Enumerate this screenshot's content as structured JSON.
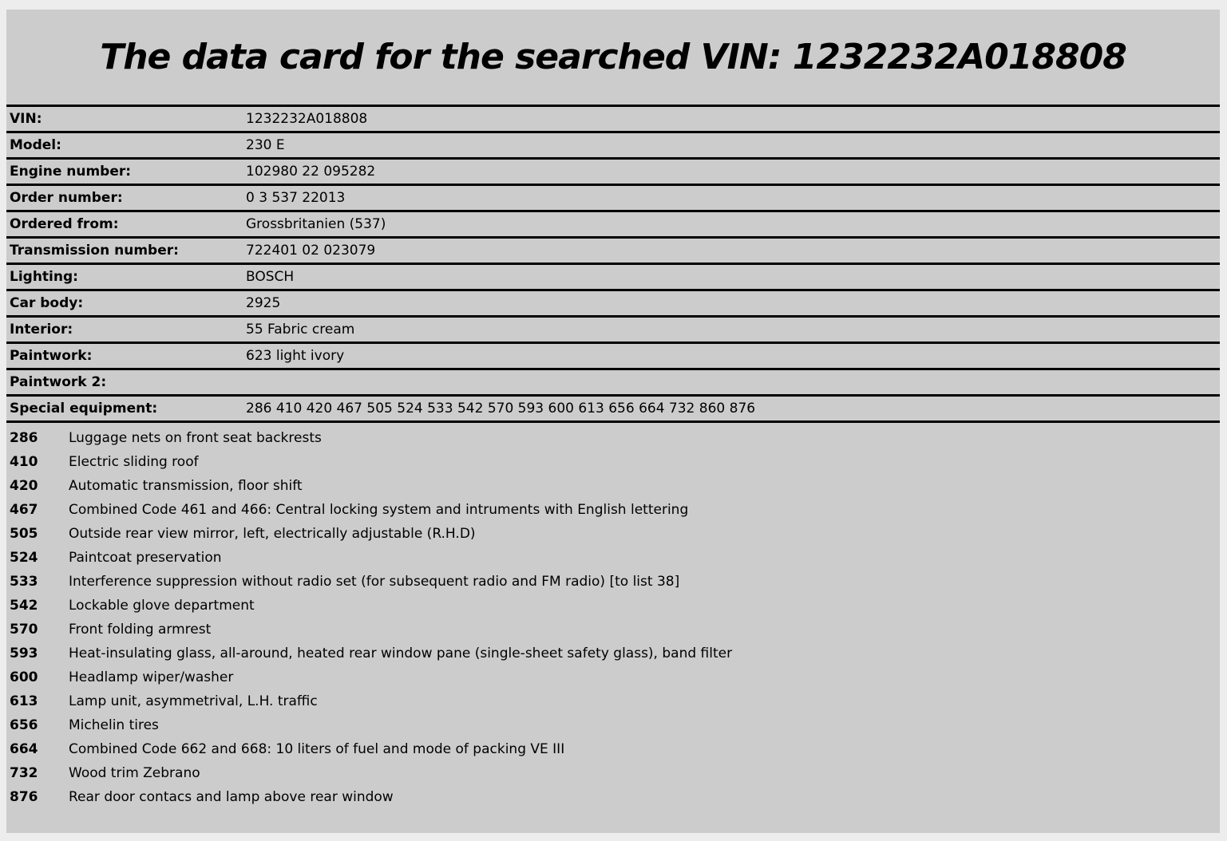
{
  "page": {
    "title": "The data card for the searched VIN: 1232232A018808"
  },
  "data_card": {
    "rows": [
      {
        "label": "VIN:",
        "value": "1232232A018808"
      },
      {
        "label": "Model:",
        "value": "230 E"
      },
      {
        "label": "Engine number:",
        "value": "102980 22 095282"
      },
      {
        "label": "Order number:",
        "value": "0 3 537 22013"
      },
      {
        "label": "Ordered from:",
        "value": "Grossbritanien (537)"
      },
      {
        "label": "Transmission number:",
        "value": "722401 02 023079"
      },
      {
        "label": "Lighting:",
        "value": "BOSCH"
      },
      {
        "label": "Car body:",
        "value": "2925"
      },
      {
        "label": "Interior:",
        "value": "55 Fabric cream"
      },
      {
        "label": "Paintwork:",
        "value": "623 light ivory"
      },
      {
        "label": "Paintwork 2:",
        "value": ""
      },
      {
        "label": "Special equipment:",
        "value": "286 410 420 467 505 524 533 542 570 593 600 613 656 664 732 860 876"
      }
    ]
  },
  "equipment_list": {
    "items": [
      {
        "code": "286",
        "description": "Luggage nets on front seat backrests"
      },
      {
        "code": "410",
        "description": "Electric sliding roof"
      },
      {
        "code": "420",
        "description": "Automatic transmission, floor shift"
      },
      {
        "code": "467",
        "description": "Combined Code 461 and 466: Central locking system and intruments with English lettering"
      },
      {
        "code": "505",
        "description": "Outside rear view mirror, left, electrically adjustable (R.H.D)"
      },
      {
        "code": "524",
        "description": "Paintcoat preservation"
      },
      {
        "code": "533",
        "description": "Interference suppression without radio set (for subsequent radio and FM radio) [to list 38]"
      },
      {
        "code": "542",
        "description": "Lockable glove department"
      },
      {
        "code": "570",
        "description": "Front folding armrest"
      },
      {
        "code": "593",
        "description": "Heat-insulating glass, all-around, heated rear window pane (single-sheet safety glass), band filter"
      },
      {
        "code": "600",
        "description": "Headlamp wiper/washer"
      },
      {
        "code": "613",
        "description": "Lamp unit, asymmetrival, L.H. traffic"
      },
      {
        "code": "656",
        "description": "Michelin tires"
      },
      {
        "code": "664",
        "description": "Combined Code 662 and 668: 10 liters of fuel and mode of packing VE III"
      },
      {
        "code": "732",
        "description": "Wood trim Zebrano"
      },
      {
        "code": "876",
        "description": "Rear door contacs and lamp above rear window"
      }
    ]
  },
  "colors": {
    "page_background": "#ededed",
    "content_background": "#cccccc",
    "border": "#000000",
    "text": "#000000"
  }
}
